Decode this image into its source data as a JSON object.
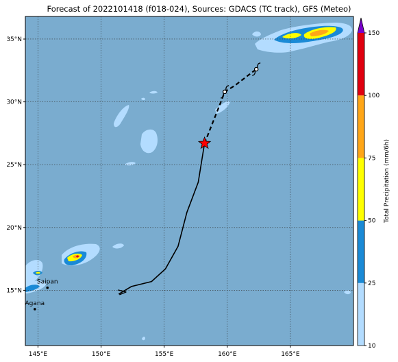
{
  "title": "Forecast of 2022101418 (f018-024), Sources: GDACS (TC track), GFS (Meteo)",
  "map": {
    "lon_range": [
      144,
      170
    ],
    "lat_range": [
      10.6,
      36.8
    ],
    "gridlines": true,
    "lon_ticks": [
      {
        "value": 145,
        "label": "145°E"
      },
      {
        "value": 150,
        "label": "150°E"
      },
      {
        "value": 155,
        "label": "155°E"
      },
      {
        "value": 160,
        "label": "160°E"
      },
      {
        "value": 165,
        "label": "165°E"
      }
    ],
    "lat_ticks": [
      {
        "value": 15,
        "label": "15°N"
      },
      {
        "value": 20,
        "label": "20°N"
      },
      {
        "value": 25,
        "label": "25°N"
      },
      {
        "value": 30,
        "label": "30°N"
      },
      {
        "value": 35,
        "label": "35°N"
      }
    ],
    "places": [
      {
        "name": "Saipan",
        "lon": 145.75,
        "lat": 15.2
      },
      {
        "name": "Agana",
        "lon": 144.75,
        "lat": 13.5
      }
    ],
    "track_past": [
      [
        151.4,
        14.7
      ],
      [
        152.4,
        15.3
      ],
      [
        154,
        15.7
      ],
      [
        155.1,
        16.7
      ],
      [
        156.1,
        18.5
      ],
      [
        156.8,
        21.2
      ],
      [
        157.7,
        23.6
      ],
      [
        158.2,
        26.7
      ]
    ],
    "track_forecast": [
      [
        158.2,
        26.7
      ],
      [
        159.3,
        29.5
      ],
      [
        159.8,
        30.8
      ],
      [
        160.6,
        31.3
      ],
      [
        162.3,
        32.6
      ]
    ],
    "current_position": {
      "lon": 158.2,
      "lat": 26.7
    },
    "storm_symbols": [
      {
        "lon": 159.8,
        "lat": 30.8
      },
      {
        "lon": 162.3,
        "lat": 32.6
      }
    ]
  },
  "colorbar": {
    "label": "Total Precipitation (mm/6h)",
    "levels": [
      10,
      25,
      50,
      75,
      100,
      150
    ],
    "colors": [
      "#b3dcff",
      "#1a8ad6",
      "#ffff00",
      "#ffa617",
      "#e0000f",
      "#7a00cc"
    ],
    "tick_labels": [
      "10",
      "25",
      "50",
      "75",
      "100",
      "150"
    ]
  },
  "colors": {
    "ocean": "#7aaccf",
    "track": "#000000",
    "current": "#ff0000"
  }
}
